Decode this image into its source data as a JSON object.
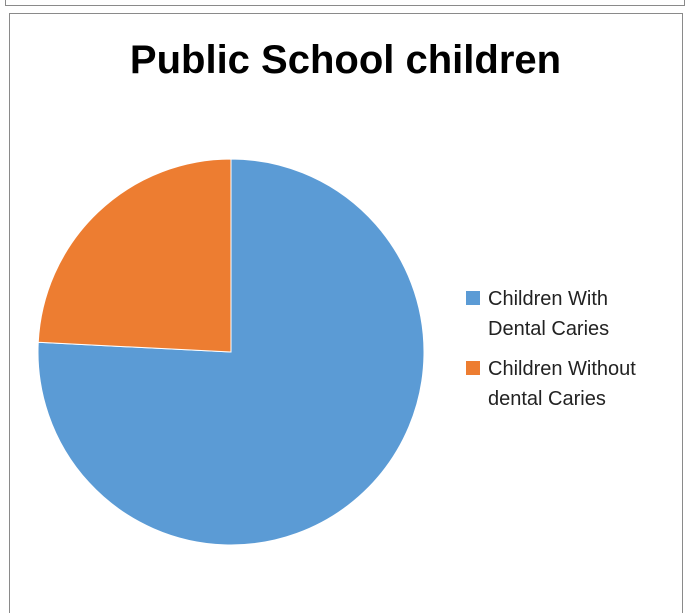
{
  "chart_data": {
    "type": "pie",
    "title": "Public School children",
    "legend_position": "right",
    "slices": [
      {
        "label": "Children With Dental Caries",
        "label_lines": [
          "Children With",
          "Dental Caries"
        ],
        "value": 75.8,
        "color": "#5b9bd5"
      },
      {
        "label": "Children Without dental Caries",
        "label_lines": [
          "Children Without",
          "dental Caries"
        ],
        "value": 24.2,
        "color": "#ed7d31"
      }
    ]
  }
}
